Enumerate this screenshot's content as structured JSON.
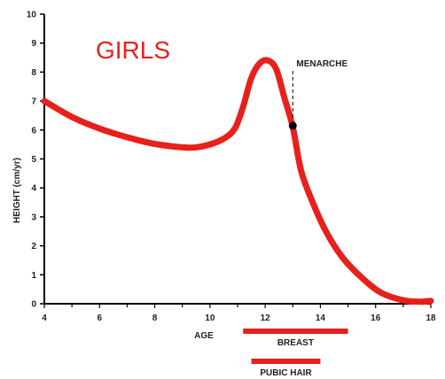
{
  "chart_data": {
    "type": "line",
    "title": "GIRLS",
    "xlabel": "AGE",
    "ylabel": "HEIGHT (cm/yr)",
    "xlim": [
      4,
      18
    ],
    "ylim": [
      0,
      10
    ],
    "x_ticks": [
      4,
      6,
      8,
      10,
      12,
      14,
      16,
      18
    ],
    "y_ticks": [
      0,
      1,
      2,
      3,
      4,
      5,
      6,
      7,
      8,
      9,
      10
    ],
    "series": [
      {
        "x": [
          4,
          5,
          6,
          7,
          8,
          9,
          9.5,
          10,
          10.5,
          10.9,
          11.2,
          11.5,
          11.8,
          12.1,
          12.4,
          12.7,
          13.0,
          13.3,
          13.7,
          14.2,
          14.8,
          15.5,
          16.2,
          17.0,
          17.6,
          18
        ],
        "values": [
          7.0,
          6.45,
          6.05,
          5.75,
          5.52,
          5.4,
          5.4,
          5.5,
          5.7,
          6.05,
          6.8,
          7.8,
          8.3,
          8.4,
          8.1,
          7.1,
          6.1,
          4.6,
          3.55,
          2.5,
          1.6,
          0.9,
          0.38,
          0.12,
          0.07,
          0.1
        ]
      }
    ],
    "annotations": [
      {
        "label": "MENARCHE",
        "x": 13.0,
        "y": 6.15
      }
    ],
    "ranges": [
      {
        "label": "BREAST",
        "start": 11.2,
        "end": 15.0
      },
      {
        "label": "PUBIC HAIR",
        "start": 11.5,
        "end": 14.0
      }
    ],
    "line_color": "#e8201c",
    "marker_color": "#000000"
  }
}
